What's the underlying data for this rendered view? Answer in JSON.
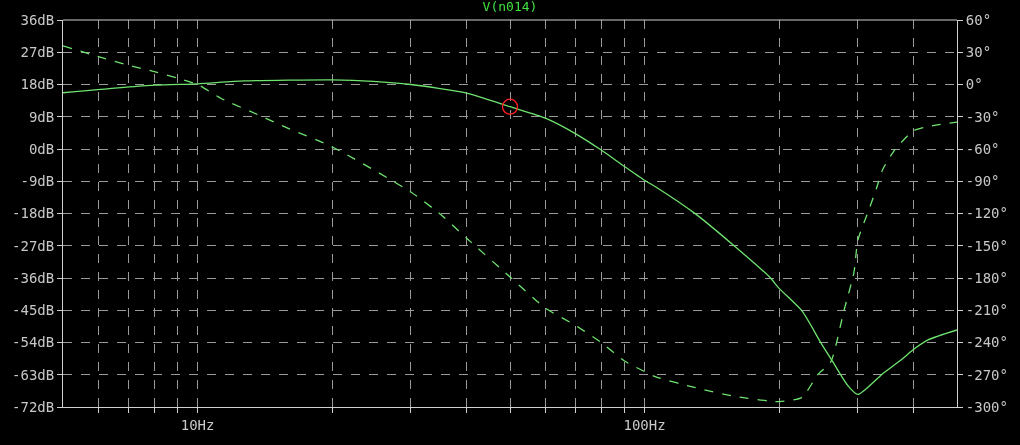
{
  "chart_data": {
    "type": "line",
    "title": "V(n014)",
    "log": "x",
    "grid": true,
    "xlim": [
      5,
      500
    ],
    "xticks": [
      {
        "value": 6,
        "label": null
      },
      {
        "value": 7,
        "label": null
      },
      {
        "value": 8,
        "label": null
      },
      {
        "value": 9,
        "label": null
      },
      {
        "value": 10,
        "label": "10Hz"
      },
      {
        "value": 20,
        "label": null
      },
      {
        "value": 30,
        "label": null
      },
      {
        "value": 40,
        "label": null
      },
      {
        "value": 50,
        "label": null
      },
      {
        "value": 60,
        "label": null
      },
      {
        "value": 70,
        "label": null
      },
      {
        "value": 80,
        "label": null
      },
      {
        "value": 90,
        "label": null
      },
      {
        "value": 100,
        "label": "100Hz"
      },
      {
        "value": 200,
        "label": null
      },
      {
        "value": 300,
        "label": null
      },
      {
        "value": 400,
        "label": null
      }
    ],
    "ylim": [
      -72,
      36
    ],
    "yticks": [
      {
        "value": 36,
        "label": "36dB"
      },
      {
        "value": 27,
        "label": "27dB"
      },
      {
        "value": 18,
        "label": "18dB"
      },
      {
        "value": 9,
        "label": "9dB"
      },
      {
        "value": 0,
        "label": "0dB"
      },
      {
        "value": -9,
        "label": "-9dB"
      },
      {
        "value": -18,
        "label": "-18dB"
      },
      {
        "value": -27,
        "label": "-27dB"
      },
      {
        "value": -36,
        "label": "-36dB"
      },
      {
        "value": -45,
        "label": "-45dB"
      },
      {
        "value": -54,
        "label": "-54dB"
      },
      {
        "value": -63,
        "label": "-63dB"
      },
      {
        "value": -72,
        "label": "-72dB"
      }
    ],
    "y2lim": [
      -300,
      60
    ],
    "y2ticks": [
      {
        "value": 60,
        "label": "60°"
      },
      {
        "value": 30,
        "label": "30°"
      },
      {
        "value": 0,
        "label": "0°"
      },
      {
        "value": -30,
        "label": "-30°"
      },
      {
        "value": -60,
        "label": "-60°"
      },
      {
        "value": -90,
        "label": "-90°"
      },
      {
        "value": -120,
        "label": "-120°"
      },
      {
        "value": -150,
        "label": "-150°"
      },
      {
        "value": -180,
        "label": "-180°"
      },
      {
        "value": -210,
        "label": "-210°"
      },
      {
        "value": -240,
        "label": "-240°"
      },
      {
        "value": -270,
        "label": "-270°"
      },
      {
        "value": -300,
        "label": "-300°"
      }
    ],
    "series": [
      {
        "color": "#6fe36f",
        "line_style": "solid",
        "x": [
          5,
          8,
          10,
          12.7,
          20,
          24.7,
          30,
          40,
          50,
          60,
          70,
          80,
          90,
          100,
          106,
          130,
          158.6,
          190.6,
          200,
          225,
          248,
          264,
          284,
          300,
          341,
          377,
          400,
          432,
          500
        ],
        "values": [
          15.7,
          17.8,
          18.2,
          19.0,
          19.3,
          18.9,
          18.0,
          15.6,
          11.8,
          8.6,
          4.3,
          -0.3,
          -4.8,
          -8.7,
          -10.6,
          -18.1,
          -27.0,
          -35.8,
          -38.9,
          -45.2,
          -54.1,
          -59.5,
          -65.8,
          -68.5,
          -62.7,
          -58.6,
          -55.9,
          -53.2,
          -50.5
        ]
      },
      {
        "color": "#6fe36f",
        "line_style": "dashed",
        "axis": "y2",
        "x": [
          5,
          6,
          7,
          8,
          9,
          10,
          11.3,
          13.8,
          16,
          20,
          30,
          35,
          40,
          50,
          60,
          70,
          80,
          90,
          100,
          106,
          130,
          158.6,
          200,
          225,
          244,
          261,
          279,
          294,
          300,
          316,
          330,
          341,
          364,
          400,
          432,
          500
        ],
        "values": [
          36,
          26,
          18,
          12,
          6,
          0,
          -13,
          -29,
          -41,
          -58,
          -100,
          -121,
          -143,
          -179,
          -208,
          -224,
          -240,
          -257,
          -267,
          -272,
          -282,
          -290,
          -295,
          -291,
          -270,
          -258,
          -211,
          -175,
          -145,
          -119,
          -97,
          -79,
          -60,
          -43,
          -39,
          -35
        ]
      },
      {
        "type": "scatter",
        "color": "#ff2020",
        "marker": "circle",
        "x": [
          50
        ],
        "values": [
          11.8
        ]
      }
    ]
  }
}
